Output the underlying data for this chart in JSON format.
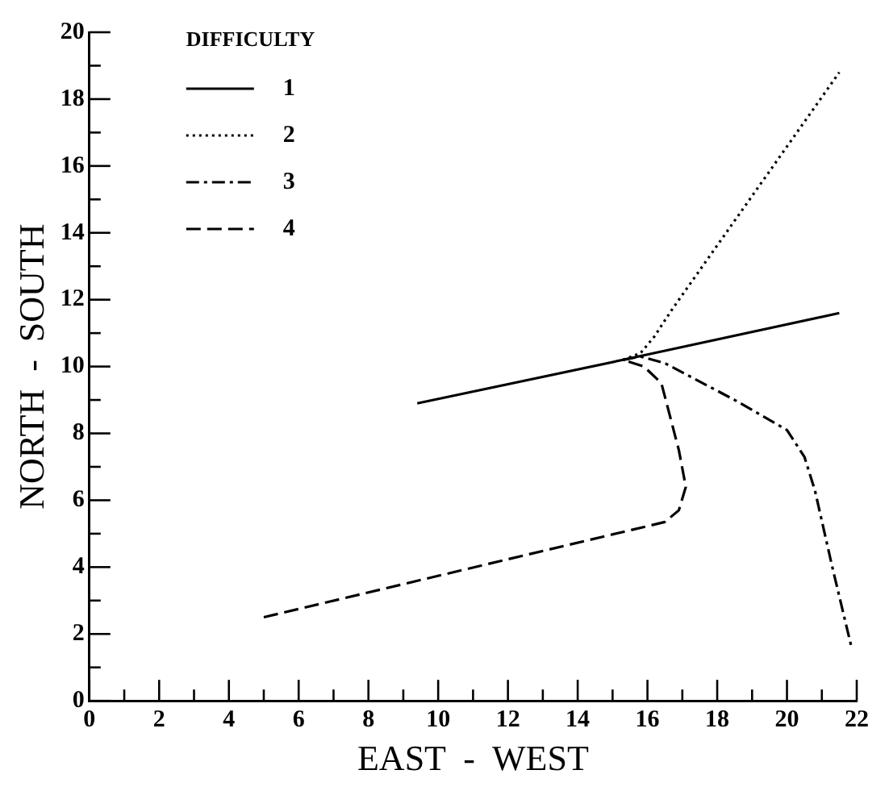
{
  "chart_data": {
    "type": "line",
    "xlabel": "EAST  -  WEST",
    "ylabel": "NORTH  -  SOUTH",
    "legend_title": "DIFFICULTY",
    "legend": "top left",
    "grid": false,
    "marker": "none",
    "xlim": [
      0,
      22
    ],
    "ylim": [
      0,
      20
    ],
    "xticks": [
      0,
      {
        "value": 1,
        "label": null
      },
      2,
      {
        "value": 3,
        "label": null
      },
      4,
      {
        "value": 5,
        "label": null
      },
      6,
      {
        "value": 7,
        "label": null
      },
      8,
      {
        "value": 9,
        "label": null
      },
      10,
      {
        "value": 11,
        "label": null
      },
      12,
      {
        "value": 13,
        "label": null
      },
      14,
      {
        "value": 15,
        "label": null
      },
      16,
      {
        "value": 17,
        "label": null
      },
      18,
      {
        "value": 19,
        "label": null
      },
      20,
      {
        "value": 21,
        "label": null
      },
      22
    ],
    "yticks": [
      0,
      {
        "value": 1,
        "label": null
      },
      2,
      {
        "value": 3,
        "label": null
      },
      4,
      {
        "value": 5,
        "label": null
      },
      6,
      {
        "value": 7,
        "label": null
      },
      8,
      {
        "value": 9,
        "label": null
      },
      10,
      {
        "value": 11,
        "label": null
      },
      12,
      {
        "value": 13,
        "label": null
      },
      14,
      {
        "value": 15,
        "label": null
      },
      16,
      {
        "value": 17,
        "label": null
      },
      18,
      {
        "value": 19,
        "label": null
      },
      20
    ],
    "series": [
      {
        "name": "1",
        "color": "#000000",
        "line_style": "solid",
        "x": [
          9.4,
          15.3,
          21.5
        ],
        "values": [
          8.9,
          10.2,
          11.6
        ]
      },
      {
        "name": "2",
        "color": "#000000",
        "line_style": "dotted",
        "x": [
          15.3,
          15.8,
          16.2,
          16.7,
          21.5
        ],
        "values": [
          10.2,
          10.4,
          10.9,
          11.7,
          18.8
        ]
      },
      {
        "name": "3",
        "color": "#000000",
        "line_style": "dashdot",
        "x": [
          15.3,
          15.8,
          16.5,
          18.5,
          20.0,
          20.5,
          20.8,
          21.3,
          21.85
        ],
        "values": [
          10.2,
          10.3,
          10.1,
          9.0,
          8.1,
          7.3,
          6.3,
          4.0,
          1.6
        ]
      },
      {
        "name": "4",
        "color": "#000000",
        "line_style": "dashed",
        "x": [
          5.0,
          16.5,
          16.9,
          17.1,
          16.9,
          16.4,
          15.9,
          15.3
        ],
        "values": [
          2.5,
          5.35,
          5.7,
          6.4,
          7.5,
          9.5,
          10.0,
          10.2
        ]
      }
    ]
  }
}
